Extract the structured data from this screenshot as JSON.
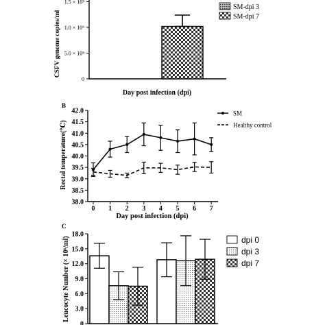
{
  "chart_data": [
    {
      "panel": "A",
      "type": "bar",
      "ylabel": "CSFV genome copies/ml",
      "xlabel": "Day post infection (dpi)",
      "ylim": [
        0,
        1500000000
      ],
      "yticks": [
        {
          "value": 0,
          "label": "0"
        },
        {
          "value": 500000000,
          "label": "5.0 × 10⁸"
        },
        {
          "value": 1000000000,
          "label": "1.0 × 10⁹"
        },
        {
          "value": 1500000000,
          "label": "1.5 × 10⁹"
        }
      ],
      "series": [
        {
          "name": "SM-dpi 3",
          "values": [
            0
          ],
          "errors": [
            0
          ],
          "color": "#333333",
          "pattern": "grid"
        },
        {
          "name": "SM-dpi 7",
          "values": [
            1020000000
          ],
          "errors": [
            220000000
          ],
          "color": "#333333",
          "pattern": "check"
        }
      ],
      "legend": "top-right",
      "grid": false
    },
    {
      "panel": "B",
      "type": "line",
      "ylabel": "Rectal temperature(℃)",
      "xlabel": "Day post infection (dpi)",
      "x": [
        0,
        1,
        2,
        3,
        4,
        5,
        6,
        7
      ],
      "ylim": [
        38.0,
        42.0
      ],
      "yticks": [
        "38.0",
        "38.5",
        "39.0",
        "39.5",
        "40.0",
        "40.5",
        "41.0",
        "41.5",
        "42.0"
      ],
      "xticks": [
        "0",
        "1",
        "2",
        "3",
        "4",
        "5",
        "6",
        "7"
      ],
      "series": [
        {
          "name": "SM",
          "values": [
            39.4,
            40.3,
            40.5,
            40.95,
            40.8,
            40.65,
            40.75,
            40.5
          ],
          "errors": [
            0.3,
            0.35,
            0.35,
            0.5,
            0.55,
            0.5,
            0.7,
            0.3
          ],
          "style": "solid",
          "color": "#000000"
        },
        {
          "name": "Healthy control",
          "values": [
            39.3,
            39.22,
            39.15,
            39.48,
            39.48,
            39.4,
            39.52,
            39.5
          ],
          "errors": [
            0.15,
            0.15,
            0.1,
            0.25,
            0.2,
            0.2,
            0.2,
            0.25
          ],
          "style": "dashed",
          "color": "#000000"
        }
      ],
      "legend": "top-right",
      "grid": false
    },
    {
      "panel": "C",
      "type": "bar",
      "ylabel": "Leucocyte Number (× 10⁶/ml)",
      "xlabel": "",
      "ylim": [
        0,
        18.0
      ],
      "yticks": [
        "0",
        "3.0",
        "6.0",
        "9.0",
        "12.0",
        "15.0",
        "18.0"
      ],
      "groups": 2,
      "series": [
        {
          "name": "dpi 0",
          "values": [
            13.6,
            12.8
          ],
          "errors": [
            2.5,
            3.4
          ],
          "pattern": "none"
        },
        {
          "name": "dpi 3",
          "values": [
            7.6,
            12.6
          ],
          "errors": [
            2.8,
            5.0
          ],
          "pattern": "dots"
        },
        {
          "name": "dpi 7",
          "values": [
            7.5,
            12.9
          ],
          "errors": [
            3.8,
            4.0
          ],
          "pattern": "check"
        }
      ],
      "legend": "top-right",
      "grid": false
    }
  ],
  "panel_labels": [
    "B",
    "C"
  ],
  "colors": {
    "ink": "#000000",
    "pattern_dark": "#333333"
  }
}
